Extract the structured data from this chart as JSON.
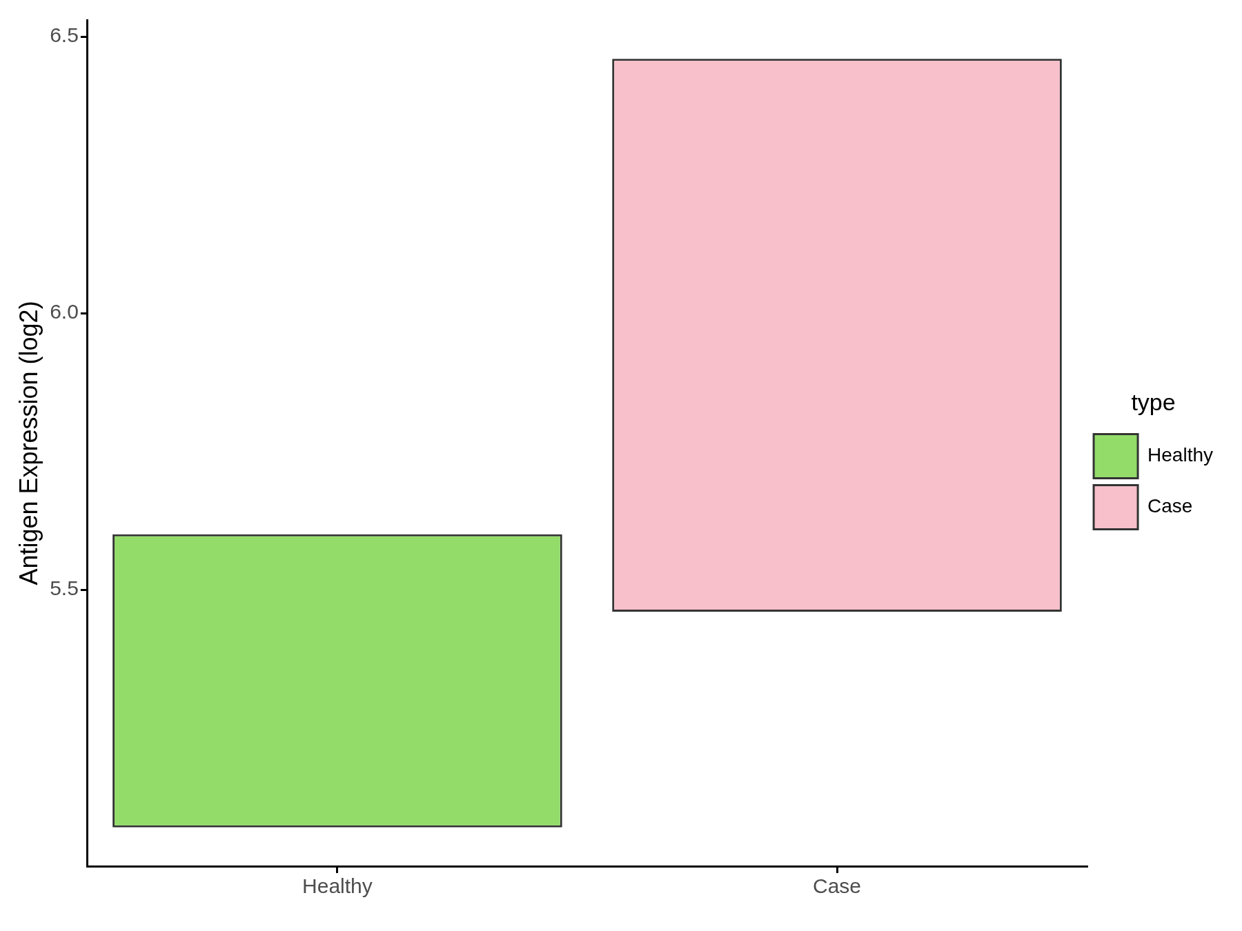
{
  "chart_data": {
    "type": "bar",
    "categories": [
      "Healthy",
      "Case"
    ],
    "ylabel": "Antigen Expression (log2)",
    "ylim": [
      5.0,
      6.53
    ],
    "yticks": [
      {
        "value": 5.5,
        "label": "5.5"
      },
      {
        "value": 6.0,
        "label": "6.0"
      },
      {
        "value": 6.5,
        "label": "6.5"
      }
    ],
    "legend": "right",
    "legend_title": "type",
    "series": [
      {
        "name": "Healthy",
        "color": "#93dc6a",
        "base": [
          5.07,
          null
        ],
        "values": [
          0.53,
          null
        ]
      },
      {
        "name": "Case",
        "color": "#f7c0cb",
        "base": [
          null,
          5.46
        ],
        "values": [
          null,
          1.0
        ]
      }
    ]
  }
}
